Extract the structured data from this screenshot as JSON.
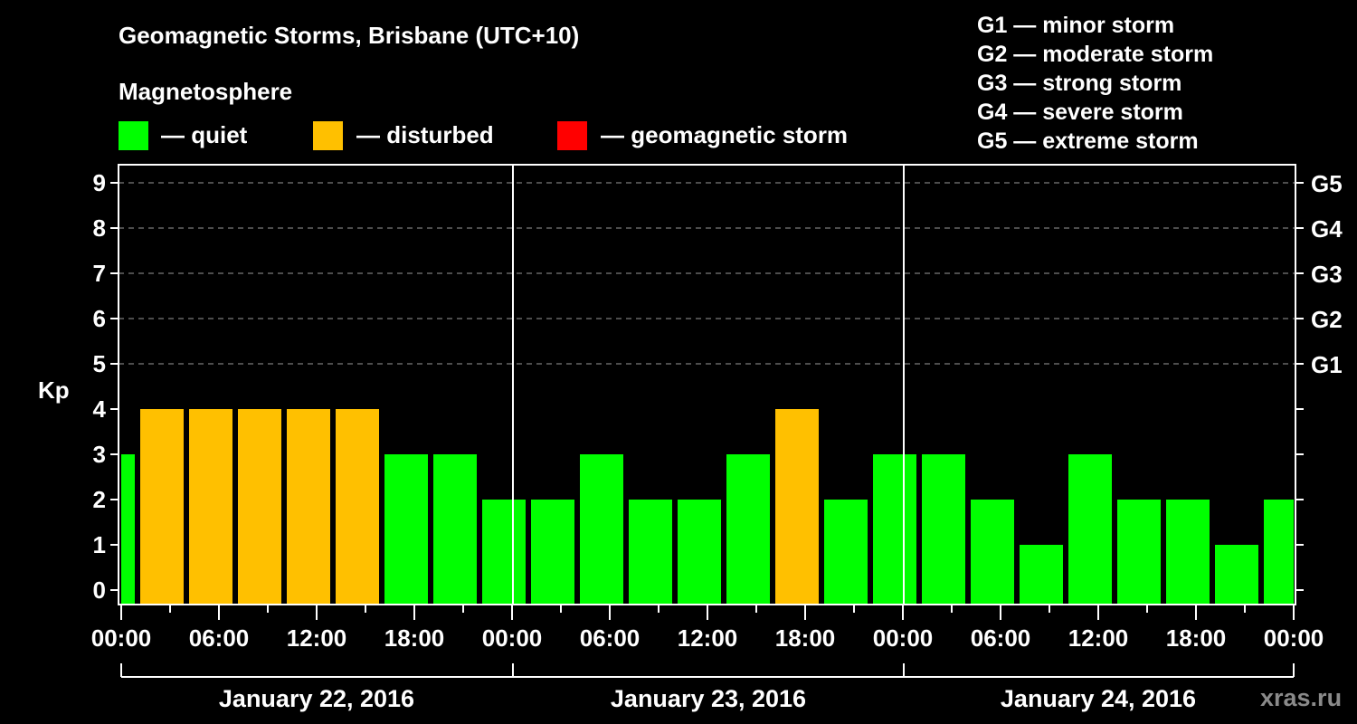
{
  "header": {
    "title": "Geomagnetic Storms, Brisbane (UTC+10)",
    "subtitle": "Magnetosphere"
  },
  "legend": [
    {
      "label": "— quiet",
      "color": "#00ff00"
    },
    {
      "label": "— disturbed",
      "color": "#ffc000"
    },
    {
      "label": "— geomagnetic storm",
      "color": "#ff0000"
    }
  ],
  "g_scale": [
    "G1 — minor storm",
    "G2 — moderate storm",
    "G3 — strong storm",
    "G4 — severe storm",
    "G5 — extreme storm"
  ],
  "watermark": "xras.ru",
  "chart_data": {
    "type": "bar",
    "title": "Geomagnetic Storms, Brisbane (UTC+10)",
    "xlabel": "",
    "ylabel": "Kp",
    "ylim": [
      0,
      9
    ],
    "yticks": [
      0,
      1,
      2,
      3,
      4,
      5,
      6,
      7,
      8,
      9
    ],
    "right_axis_labels": [
      {
        "kp": 5,
        "label": "G1"
      },
      {
        "kp": 6,
        "label": "G2"
      },
      {
        "kp": 7,
        "label": "G3"
      },
      {
        "kp": 8,
        "label": "G4"
      },
      {
        "kp": 9,
        "label": "G5"
      }
    ],
    "xtick_labels": [
      "00:00",
      "06:00",
      "12:00",
      "18:00",
      "00:00",
      "06:00",
      "12:00",
      "18:00",
      "00:00",
      "06:00",
      "12:00",
      "18:00",
      "00:00"
    ],
    "days": [
      "January 22, 2016",
      "January 23, 2016",
      "January 24, 2016"
    ],
    "grid": "dashed horizontal at Kp 5-9",
    "legend_position": "top",
    "bin_hours": 3,
    "bin_offset_hours": 1,
    "bins": [
      {
        "start": "Jan 22 00:00",
        "end": "Jan 22 01:00",
        "kp": 3,
        "status": "quiet"
      },
      {
        "start": "Jan 22 01:00",
        "end": "Jan 22 04:00",
        "kp": 4,
        "status": "disturbed"
      },
      {
        "start": "Jan 22 04:00",
        "end": "Jan 22 07:00",
        "kp": 4,
        "status": "disturbed"
      },
      {
        "start": "Jan 22 07:00",
        "end": "Jan 22 10:00",
        "kp": 4,
        "status": "disturbed"
      },
      {
        "start": "Jan 22 10:00",
        "end": "Jan 22 13:00",
        "kp": 4,
        "status": "disturbed"
      },
      {
        "start": "Jan 22 13:00",
        "end": "Jan 22 16:00",
        "kp": 4,
        "status": "disturbed"
      },
      {
        "start": "Jan 22 16:00",
        "end": "Jan 22 19:00",
        "kp": 3,
        "status": "quiet"
      },
      {
        "start": "Jan 22 19:00",
        "end": "Jan 22 22:00",
        "kp": 3,
        "status": "quiet"
      },
      {
        "start": "Jan 22 22:00",
        "end": "Jan 23 01:00",
        "kp": 2,
        "status": "quiet"
      },
      {
        "start": "Jan 23 01:00",
        "end": "Jan 23 04:00",
        "kp": 2,
        "status": "quiet"
      },
      {
        "start": "Jan 23 04:00",
        "end": "Jan 23 07:00",
        "kp": 3,
        "status": "quiet"
      },
      {
        "start": "Jan 23 07:00",
        "end": "Jan 23 10:00",
        "kp": 2,
        "status": "quiet"
      },
      {
        "start": "Jan 23 10:00",
        "end": "Jan 23 13:00",
        "kp": 2,
        "status": "quiet"
      },
      {
        "start": "Jan 23 13:00",
        "end": "Jan 23 16:00",
        "kp": 3,
        "status": "quiet"
      },
      {
        "start": "Jan 23 16:00",
        "end": "Jan 23 19:00",
        "kp": 4,
        "status": "disturbed"
      },
      {
        "start": "Jan 23 19:00",
        "end": "Jan 23 22:00",
        "kp": 2,
        "status": "quiet"
      },
      {
        "start": "Jan 23 22:00",
        "end": "Jan 24 01:00",
        "kp": 3,
        "status": "quiet"
      },
      {
        "start": "Jan 24 01:00",
        "end": "Jan 24 04:00",
        "kp": 3,
        "status": "quiet"
      },
      {
        "start": "Jan 24 04:00",
        "end": "Jan 24 07:00",
        "kp": 2,
        "status": "quiet"
      },
      {
        "start": "Jan 24 07:00",
        "end": "Jan 24 10:00",
        "kp": 1,
        "status": "quiet"
      },
      {
        "start": "Jan 24 10:00",
        "end": "Jan 24 13:00",
        "kp": 3,
        "status": "quiet"
      },
      {
        "start": "Jan 24 13:00",
        "end": "Jan 24 16:00",
        "kp": 2,
        "status": "quiet"
      },
      {
        "start": "Jan 24 16:00",
        "end": "Jan 24 19:00",
        "kp": 2,
        "status": "quiet"
      },
      {
        "start": "Jan 24 19:00",
        "end": "Jan 24 22:00",
        "kp": 1,
        "status": "quiet"
      },
      {
        "start": "Jan 24 22:00",
        "end": "Jan 25 00:00",
        "kp": 2,
        "status": "quiet"
      }
    ],
    "values": [
      3,
      4,
      4,
      4,
      4,
      4,
      3,
      3,
      2,
      2,
      3,
      2,
      2,
      3,
      4,
      2,
      3,
      3,
      2,
      1,
      3,
      2,
      2,
      1,
      2
    ]
  }
}
